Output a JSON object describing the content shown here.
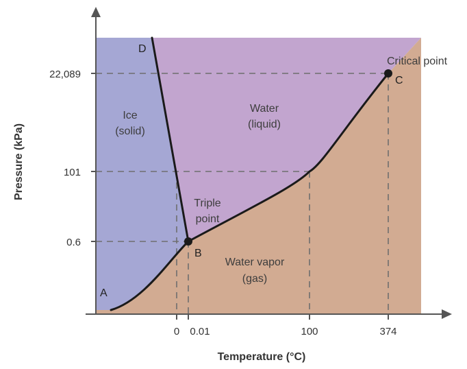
{
  "colors": {
    "solid": "#a5a7d4",
    "liquid": "#c2a5cf",
    "gas": "#d2ab92",
    "curve": "#1a1a1a",
    "guide": "#6e6e6e",
    "axis": "#555555"
  },
  "axes": {
    "x_title": "Temperature (°C)",
    "y_title": "Pressure (kPa)",
    "x_ticks": [
      "0",
      "0.01",
      "100",
      "374"
    ],
    "y_ticks": [
      "22,089",
      "101",
      "0.6"
    ]
  },
  "regions": {
    "ice": [
      "Ice",
      "(solid)"
    ],
    "water": [
      "Water",
      "(liquid)"
    ],
    "vapor": [
      "Water vapor",
      "(gas)"
    ]
  },
  "points": {
    "A": "A",
    "B": "B",
    "C": "C",
    "D": "D",
    "triple": [
      "Triple",
      "point"
    ],
    "critical": "Critical point"
  }
}
